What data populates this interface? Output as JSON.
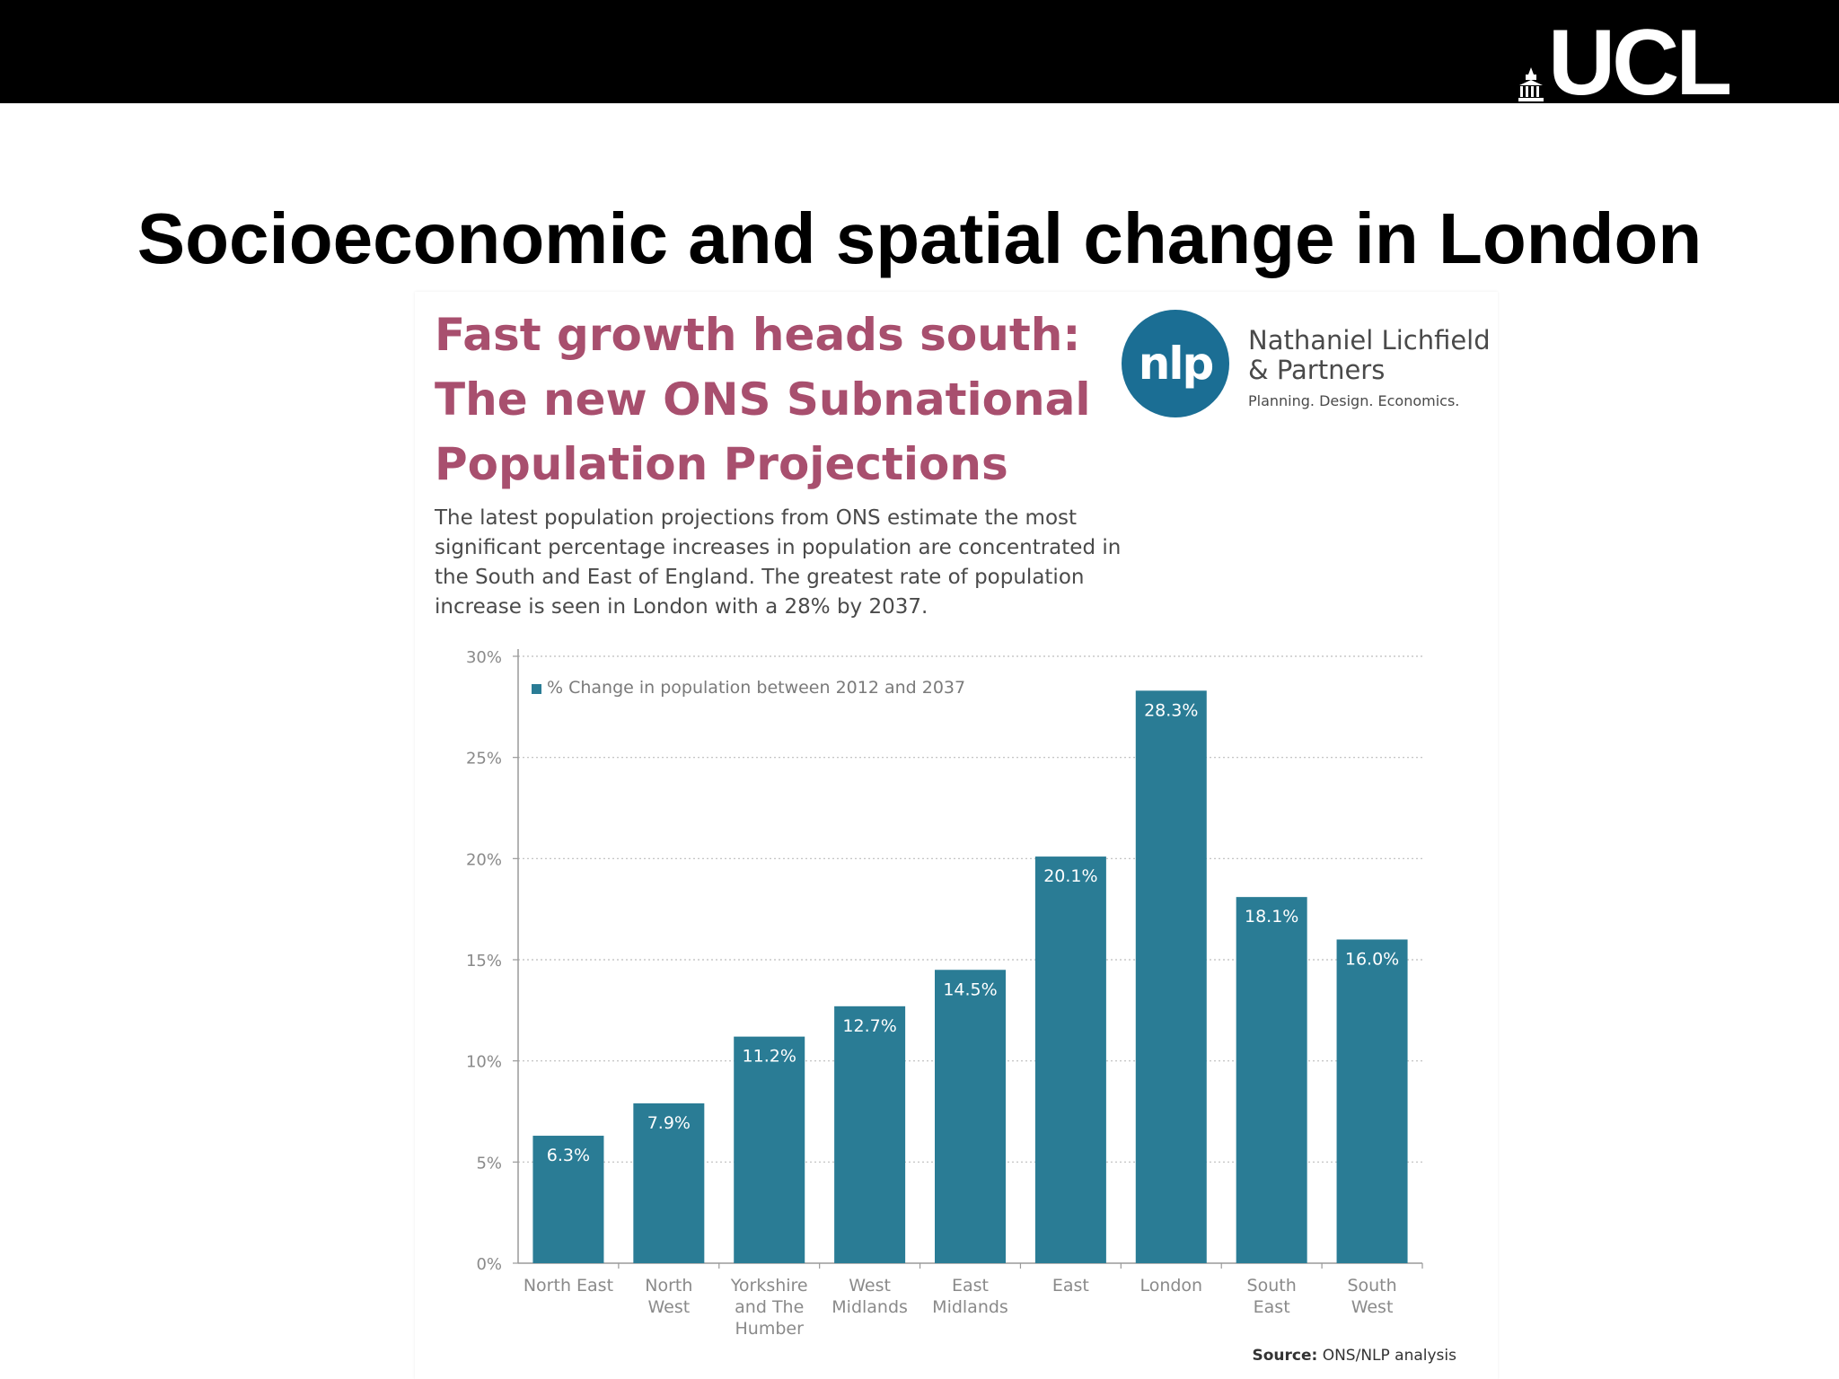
{
  "slide": {
    "title": "Socioeconomic and spatial change in London",
    "logo_text": "UCL"
  },
  "infographic": {
    "headline_lines": [
      "Fast growth heads south:",
      "The new ONS Subnational",
      "Population Projections"
    ],
    "intro_lines": [
      "The latest population projections from ONS estimate the most",
      "significant percentage increases in population are concentrated in",
      "the South and East of England. The greatest rate of population",
      "increase is seen in London with a 28% by 2037."
    ],
    "nlp_logo": "nlp",
    "nlp_name_lines": [
      "Nathaniel Lichfield",
      "& Partners"
    ],
    "nlp_tagline": "Planning. Design. Economics.",
    "source_label": "Source:",
    "source_value": "ONS/NLP analysis"
  },
  "colors": {
    "bar": "#2a7c95",
    "headline": "#a84f6e",
    "nlp_blue": "#1b6e94",
    "top_bar": "#000000"
  },
  "chart_data": {
    "type": "bar",
    "categories": [
      [
        "North East"
      ],
      [
        "North",
        "West"
      ],
      [
        "Yorkshire",
        "and The",
        "Humber"
      ],
      [
        "West",
        "Midlands"
      ],
      [
        "East",
        "Midlands"
      ],
      [
        "East"
      ],
      [
        "London"
      ],
      [
        "South",
        "East"
      ],
      [
        "South",
        "West"
      ]
    ],
    "series": [
      {
        "name": "% Change in population between 2012 and 2037",
        "values": [
          6.3,
          7.9,
          11.2,
          12.7,
          14.5,
          20.1,
          28.3,
          18.1,
          16.0
        ],
        "labels": [
          "6.3%",
          "7.9%",
          "11.2%",
          "12.7%",
          "14.5%",
          "20.1%",
          "28.3%",
          "18.1%",
          "16.0%"
        ]
      }
    ],
    "ylim": [
      0,
      30
    ],
    "yticks": [
      0,
      5,
      10,
      15,
      20,
      25,
      30
    ],
    "ytick_labels": [
      "0%",
      "5%",
      "10%",
      "15%",
      "20%",
      "25%",
      "30%"
    ],
    "grid": true,
    "legend_position": "top-left"
  }
}
